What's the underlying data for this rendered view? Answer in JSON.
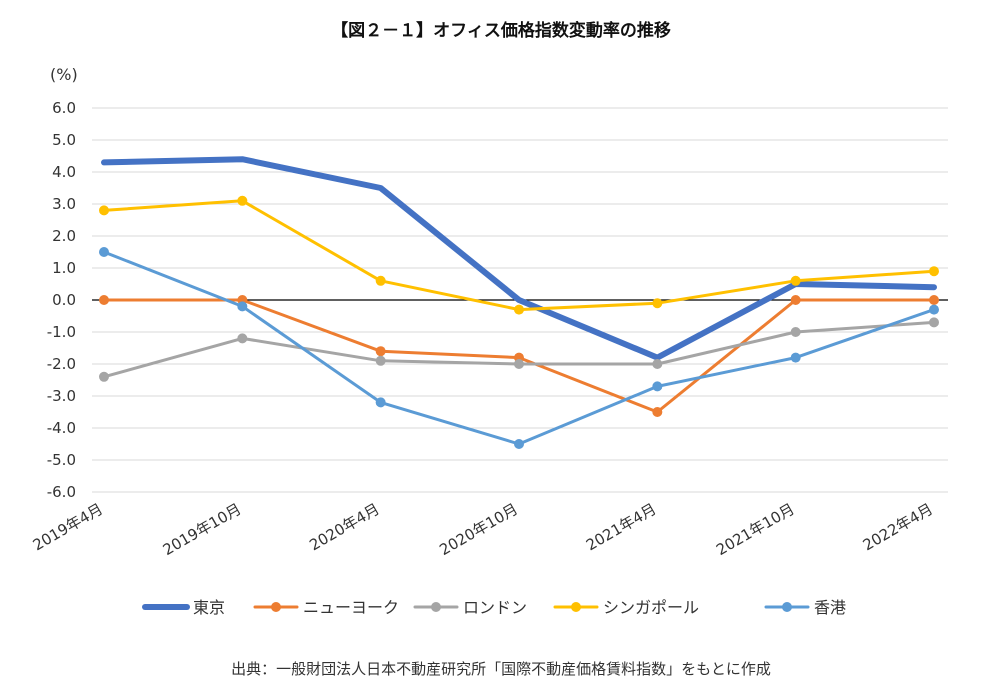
{
  "chart_data": {
    "type": "line",
    "title": "【図２－１】オフィス価格指数変動率の推移",
    "ylabel": "(%)",
    "xlabel": "",
    "ylim": [
      -6.0,
      6.0
    ],
    "ytick_step": 1.0,
    "y_ticks": [
      "6.0",
      "5.0",
      "4.0",
      "3.0",
      "2.0",
      "1.0",
      "0.0",
      "-1.0",
      "-2.0",
      "-3.0",
      "-4.0",
      "-5.0",
      "-6.0"
    ],
    "categories": [
      "2019年4月",
      "2019年10月",
      "2020年4月",
      "2020年10月",
      "2021年4月",
      "2021年10月",
      "2022年4月"
    ],
    "grid": true,
    "legend_position": "bottom",
    "series": [
      {
        "name": "東京",
        "color": "#4472C4",
        "values": [
          4.3,
          4.4,
          3.5,
          0.0,
          -1.8,
          0.5,
          0.4
        ]
      },
      {
        "name": "ニューヨーク",
        "color": "#ED7D31",
        "values": [
          0.0,
          0.0,
          -1.6,
          -1.8,
          -3.5,
          0.0,
          0.0
        ]
      },
      {
        "name": "ロンドン",
        "color": "#A5A5A5",
        "values": [
          -2.4,
          -1.2,
          -1.9,
          -2.0,
          -2.0,
          -1.0,
          -0.7
        ]
      },
      {
        "name": "シンガポール",
        "color": "#FFC000",
        "values": [
          2.8,
          3.1,
          0.6,
          -0.3,
          -0.1,
          0.6,
          0.9
        ]
      },
      {
        "name": "香港",
        "color": "#5B9BD5",
        "values": [
          1.5,
          -0.2,
          -3.2,
          -4.5,
          -2.7,
          -1.8,
          -0.3
        ]
      }
    ],
    "source": "出典：一般財団法人日本不動産研究所「国際不動産価格賃料指数」をもとに作成"
  }
}
